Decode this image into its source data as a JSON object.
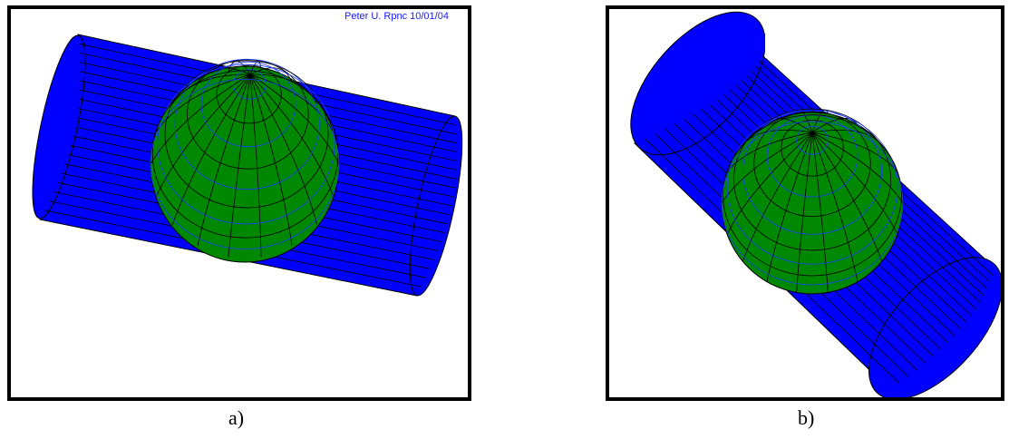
{
  "colors": {
    "cylinder": "#0000ff",
    "sphere": "#008800",
    "mesh_line": "#000000",
    "sphere_mesh": "#1e3cff",
    "frame": "#000000"
  },
  "panel_a": {
    "caption": "a)",
    "stamp": "Peter U. Rpnc 10/01/04"
  },
  "panel_b": {
    "caption": "b)"
  }
}
